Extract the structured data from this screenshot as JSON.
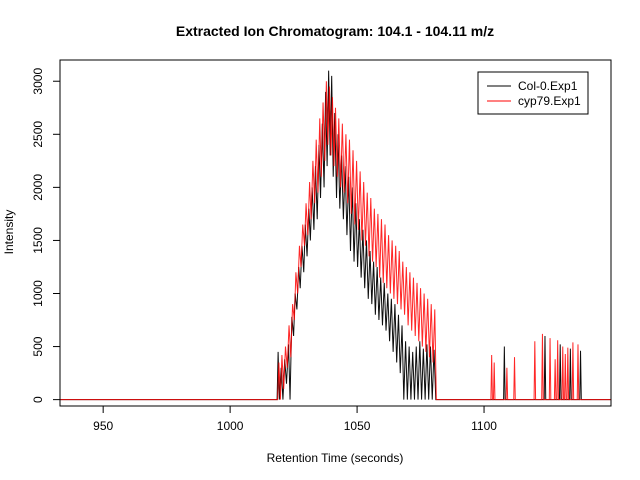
{
  "chart_data": {
    "type": "line",
    "title": "Extracted Ion Chromatogram: 104.1 - 104.11 m/z",
    "xlabel": "Retention Time (seconds)",
    "ylabel": "Intensity",
    "xlim": [
      933,
      1150
    ],
    "ylim": [
      -60,
      3200
    ],
    "x_ticks": [
      950,
      1000,
      1050,
      1100
    ],
    "y_ticks": [
      0,
      500,
      1000,
      1500,
      2000,
      2500,
      3000
    ],
    "legend_position": "top-right",
    "grid": false,
    "series": [
      {
        "name": "Col-0.Exp1",
        "color": "#000000",
        "peak": {
          "start": 1018,
          "end": 1081,
          "apex": 1040,
          "max": 3100
        },
        "points": [
          [
            1018.5,
            0
          ],
          [
            1018.9,
            450
          ],
          [
            1019.4,
            0
          ],
          [
            1020.1,
            300
          ],
          [
            1020.8,
            0
          ],
          [
            1021.5,
            380
          ],
          [
            1022.2,
            150
          ],
          [
            1023.0,
            520
          ],
          [
            1023.6,
            0
          ],
          [
            1024.3,
            780
          ],
          [
            1025.0,
            600
          ],
          [
            1025.6,
            1000
          ],
          [
            1026.3,
            850
          ],
          [
            1027.0,
            1250
          ],
          [
            1027.6,
            1050
          ],
          [
            1028.3,
            1450
          ],
          [
            1029.0,
            1200
          ],
          [
            1029.6,
            1650
          ],
          [
            1030.3,
            1350
          ],
          [
            1031.0,
            1800
          ],
          [
            1031.6,
            1500
          ],
          [
            1032.3,
            2000
          ],
          [
            1033.0,
            1600
          ],
          [
            1033.6,
            2200
          ],
          [
            1034.3,
            1700
          ],
          [
            1035.0,
            2400
          ],
          [
            1035.6,
            1900
          ],
          [
            1036.3,
            2600
          ],
          [
            1037.0,
            2000
          ],
          [
            1037.6,
            2900
          ],
          [
            1038.2,
            2200
          ],
          [
            1038.8,
            3100
          ],
          [
            1039.4,
            2300
          ],
          [
            1040.0,
            3050
          ],
          [
            1040.6,
            2100
          ],
          [
            1041.2,
            2700
          ],
          [
            1041.9,
            1900
          ],
          [
            1042.5,
            2500
          ],
          [
            1043.2,
            1800
          ],
          [
            1043.9,
            2300
          ],
          [
            1044.6,
            1700
          ],
          [
            1045.3,
            2200
          ],
          [
            1046.0,
            1550
          ],
          [
            1046.7,
            2100
          ],
          [
            1047.4,
            1400
          ],
          [
            1048.1,
            2000
          ],
          [
            1048.8,
            1300
          ],
          [
            1049.5,
            1850
          ],
          [
            1050.2,
            1250
          ],
          [
            1050.9,
            1700
          ],
          [
            1051.6,
            1150
          ],
          [
            1052.3,
            1600
          ],
          [
            1053.0,
            1050
          ],
          [
            1053.7,
            1500
          ],
          [
            1054.4,
            950
          ],
          [
            1055.1,
            1400
          ],
          [
            1055.8,
            900
          ],
          [
            1056.5,
            1300
          ],
          [
            1057.2,
            800
          ],
          [
            1057.9,
            1250
          ],
          [
            1058.6,
            750
          ],
          [
            1059.3,
            1150
          ],
          [
            1060.0,
            700
          ],
          [
            1060.7,
            1100
          ],
          [
            1061.4,
            650
          ],
          [
            1062.1,
            1000
          ],
          [
            1062.8,
            550
          ],
          [
            1063.5,
            950
          ],
          [
            1064.2,
            450
          ],
          [
            1064.9,
            900
          ],
          [
            1065.6,
            350
          ],
          [
            1066.3,
            800
          ],
          [
            1067.0,
            250
          ],
          [
            1067.7,
            700
          ],
          [
            1068.4,
            0
          ],
          [
            1069.1,
            550
          ],
          [
            1069.8,
            0
          ],
          [
            1070.5,
            500
          ],
          [
            1071.2,
            0
          ],
          [
            1071.9,
            450
          ],
          [
            1072.6,
            0
          ],
          [
            1073.3,
            500
          ],
          [
            1074.0,
            0
          ],
          [
            1074.7,
            550
          ],
          [
            1075.4,
            0
          ],
          [
            1076.1,
            480
          ],
          [
            1076.8,
            0
          ],
          [
            1077.5,
            520
          ],
          [
            1078.2,
            0
          ],
          [
            1078.9,
            500
          ],
          [
            1079.6,
            0
          ],
          [
            1080.3,
            470
          ],
          [
            1081.0,
            0
          ]
        ]
      },
      {
        "name": "cyp79.Exp1",
        "color": "#ff0000",
        "peak": {
          "start": 1018,
          "end": 1081,
          "apex": 1040,
          "max": 3000
        },
        "points": [
          [
            1018.7,
            0
          ],
          [
            1019.2,
            350
          ],
          [
            1019.8,
            0
          ],
          [
            1020.4,
            420
          ],
          [
            1021.1,
            100
          ],
          [
            1021.8,
            500
          ],
          [
            1022.5,
            300
          ],
          [
            1023.2,
            700
          ],
          [
            1023.9,
            400
          ],
          [
            1024.6,
            900
          ],
          [
            1025.3,
            750
          ],
          [
            1025.9,
            1200
          ],
          [
            1026.6,
            1000
          ],
          [
            1027.3,
            1450
          ],
          [
            1027.9,
            1250
          ],
          [
            1028.6,
            1650
          ],
          [
            1029.3,
            1450
          ],
          [
            1029.9,
            1850
          ],
          [
            1030.6,
            1550
          ],
          [
            1031.3,
            2050
          ],
          [
            1031.9,
            1700
          ],
          [
            1032.6,
            2250
          ],
          [
            1033.3,
            1850
          ],
          [
            1033.9,
            2450
          ],
          [
            1034.6,
            1950
          ],
          [
            1035.3,
            2650
          ],
          [
            1035.9,
            2100
          ],
          [
            1036.6,
            2800
          ],
          [
            1037.3,
            2250
          ],
          [
            1037.9,
            3000
          ],
          [
            1038.5,
            2400
          ],
          [
            1039.1,
            2950
          ],
          [
            1039.7,
            2300
          ],
          [
            1040.3,
            2850
          ],
          [
            1040.9,
            2200
          ],
          [
            1041.5,
            2750
          ],
          [
            1042.2,
            2100
          ],
          [
            1042.8,
            2650
          ],
          [
            1043.5,
            2000
          ],
          [
            1044.2,
            2600
          ],
          [
            1044.9,
            1950
          ],
          [
            1045.6,
            2500
          ],
          [
            1046.3,
            1850
          ],
          [
            1047.0,
            2450
          ],
          [
            1047.7,
            1750
          ],
          [
            1048.4,
            2350
          ],
          [
            1049.1,
            1650
          ],
          [
            1049.8,
            2250
          ],
          [
            1050.5,
            1600
          ],
          [
            1051.2,
            2150
          ],
          [
            1051.9,
            1500
          ],
          [
            1052.6,
            2050
          ],
          [
            1053.3,
            1450
          ],
          [
            1054.0,
            1950
          ],
          [
            1054.7,
            1350
          ],
          [
            1055.4,
            1900
          ],
          [
            1056.1,
            1300
          ],
          [
            1056.8,
            1800
          ],
          [
            1057.5,
            1250
          ],
          [
            1058.2,
            1750
          ],
          [
            1058.9,
            1150
          ],
          [
            1059.6,
            1700
          ],
          [
            1060.3,
            1100
          ],
          [
            1061.0,
            1650
          ],
          [
            1061.7,
            1050
          ],
          [
            1062.4,
            1550
          ],
          [
            1063.1,
            1000
          ],
          [
            1063.8,
            1500
          ],
          [
            1064.5,
            950
          ],
          [
            1065.2,
            1450
          ],
          [
            1065.9,
            900
          ],
          [
            1066.6,
            1400
          ],
          [
            1067.3,
            850
          ],
          [
            1068.0,
            1300
          ],
          [
            1068.7,
            800
          ],
          [
            1069.4,
            1250
          ],
          [
            1070.1,
            700
          ],
          [
            1070.8,
            1200
          ],
          [
            1071.5,
            650
          ],
          [
            1072.2,
            1150
          ],
          [
            1072.9,
            600
          ],
          [
            1073.6,
            1100
          ],
          [
            1074.3,
            550
          ],
          [
            1075.0,
            1050
          ],
          [
            1075.7,
            500
          ],
          [
            1076.4,
            1000
          ],
          [
            1077.1,
            450
          ],
          [
            1077.8,
            950
          ],
          [
            1078.5,
            400
          ],
          [
            1079.2,
            900
          ],
          [
            1079.9,
            350
          ],
          [
            1080.6,
            850
          ],
          [
            1081.2,
            0
          ]
        ]
      }
    ],
    "sparse_spikes": [
      {
        "series": "cyp79.Exp1",
        "x": 1103,
        "y": 420
      },
      {
        "series": "cyp79.Exp1",
        "x": 1104,
        "y": 350
      },
      {
        "series": "Col-0.Exp1",
        "x": 1108,
        "y": 500
      },
      {
        "series": "cyp79.Exp1",
        "x": 1109,
        "y": 300
      },
      {
        "series": "cyp79.Exp1",
        "x": 1112,
        "y": 400
      },
      {
        "series": "cyp79.Exp1",
        "x": 1120,
        "y": 550
      },
      {
        "series": "cyp79.Exp1",
        "x": 1123,
        "y": 620
      },
      {
        "series": "Col-0.Exp1",
        "x": 1124,
        "y": 600
      },
      {
        "series": "cyp79.Exp1",
        "x": 1126,
        "y": 580
      },
      {
        "series": "cyp79.Exp1",
        "x": 1128,
        "y": 380
      },
      {
        "series": "cyp79.Exp1",
        "x": 1129,
        "y": 560
      },
      {
        "series": "Col-0.Exp1",
        "x": 1130,
        "y": 520
      },
      {
        "series": "cyp79.Exp1",
        "x": 1131,
        "y": 500
      },
      {
        "series": "cyp79.Exp1",
        "x": 1132,
        "y": 430
      },
      {
        "series": "cyp79.Exp1",
        "x": 1133,
        "y": 490
      },
      {
        "series": "Col-0.Exp1",
        "x": 1134,
        "y": 480
      },
      {
        "series": "cyp79.Exp1",
        "x": 1135,
        "y": 540
      },
      {
        "series": "cyp79.Exp1",
        "x": 1137,
        "y": 520
      },
      {
        "series": "Col-0.Exp1",
        "x": 1138,
        "y": 460
      }
    ]
  }
}
